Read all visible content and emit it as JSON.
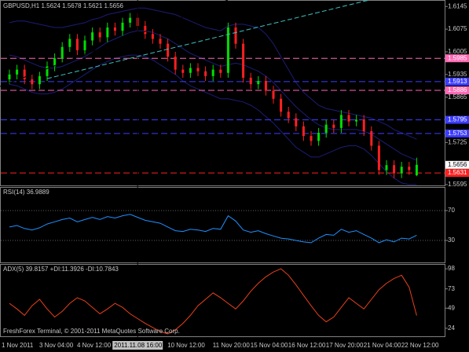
{
  "footer": "FreshForex Terminal, © 2001-2011 MetaQuotes Software Corp.",
  "chart_data": [
    {
      "type": "candlestick",
      "title": "GBPUSD,H1  1.5624 1.5678 1.5621 1.5656",
      "categories": [
        "1 Nov 2011",
        null,
        null,
        null,
        null,
        "3 Nov 04:00",
        null,
        null,
        null,
        null,
        "4 Nov 12:00",
        null,
        null,
        null,
        null,
        null,
        null,
        "2011.11.08 16:00",
        null,
        null,
        null,
        null,
        "10 Nov 12:00",
        null,
        null,
        null,
        null,
        null,
        "11 Nov 20:00",
        null,
        null,
        null,
        null,
        "15 Nov 04:00",
        null,
        null,
        null,
        null,
        "16 Nov 12:00",
        null,
        null,
        null,
        null,
        "17 Nov 20:00",
        null,
        null,
        null,
        null,
        "21 Nov 04:00",
        null,
        null,
        null,
        null,
        "22 Nov 12:00",
        null
      ],
      "open": [
        1.592,
        1.5935,
        1.595,
        1.592,
        1.5905,
        1.593,
        1.596,
        1.5985,
        1.602,
        1.6045,
        1.601,
        1.604,
        1.6065,
        1.605,
        1.608,
        1.607,
        1.6095,
        1.611,
        1.6085,
        1.606,
        1.6045,
        1.603,
        1.599,
        1.595,
        1.594,
        1.5955,
        1.5945,
        1.593,
        1.595,
        1.594,
        1.608,
        1.603,
        1.5925,
        1.5905,
        1.5915,
        1.5885,
        1.586,
        1.582,
        1.58,
        1.5775,
        1.5745,
        1.573,
        1.5755,
        1.578,
        1.577,
        1.581,
        1.579,
        1.5795,
        1.576,
        1.5715,
        1.564,
        1.5655,
        1.563,
        1.565,
        1.5624
      ],
      "high": [
        1.595,
        1.5965,
        1.5965,
        1.5935,
        1.5945,
        1.5975,
        1.6,
        1.6035,
        1.606,
        1.606,
        1.6055,
        1.608,
        1.608,
        1.6095,
        1.6095,
        1.611,
        1.6125,
        1.6125,
        1.61,
        1.6075,
        1.606,
        1.6045,
        1.6005,
        1.5965,
        1.597,
        1.597,
        1.596,
        1.5965,
        1.5965,
        1.6095,
        1.6095,
        1.6045,
        1.594,
        1.593,
        1.593,
        1.59,
        1.5875,
        1.5835,
        1.5815,
        1.579,
        1.576,
        1.577,
        1.5795,
        1.5795,
        1.5825,
        1.5825,
        1.581,
        1.581,
        1.5775,
        1.573,
        1.567,
        1.567,
        1.5665,
        1.5665,
        1.5678
      ],
      "low": [
        1.5905,
        1.592,
        1.5905,
        1.589,
        1.589,
        1.5915,
        1.5945,
        1.597,
        1.6005,
        1.5995,
        1.5995,
        1.6025,
        1.6035,
        1.6035,
        1.6055,
        1.6055,
        1.608,
        1.607,
        1.6045,
        1.603,
        1.6015,
        1.5975,
        1.5935,
        1.5925,
        1.5925,
        1.593,
        1.5915,
        1.5915,
        1.5925,
        1.5925,
        1.6015,
        1.591,
        1.589,
        1.589,
        1.587,
        1.5845,
        1.5805,
        1.5785,
        1.576,
        1.573,
        1.5715,
        1.5715,
        1.574,
        1.5755,
        1.5755,
        1.5775,
        1.5775,
        1.5745,
        1.57,
        1.5625,
        1.5625,
        1.5615,
        1.5615,
        1.5625,
        1.5621
      ],
      "close": [
        1.5935,
        1.595,
        1.592,
        1.5905,
        1.593,
        1.596,
        1.5985,
        1.602,
        1.6045,
        1.601,
        1.604,
        1.6065,
        1.605,
        1.608,
        1.607,
        1.6095,
        1.611,
        1.6085,
        1.606,
        1.6045,
        1.603,
        1.599,
        1.595,
        1.594,
        1.5955,
        1.5945,
        1.593,
        1.595,
        1.594,
        1.608,
        1.603,
        1.5925,
        1.5905,
        1.5915,
        1.5885,
        1.586,
        1.582,
        1.58,
        1.5775,
        1.5745,
        1.573,
        1.5755,
        1.578,
        1.577,
        1.581,
        1.579,
        1.5795,
        1.576,
        1.5715,
        1.564,
        1.5655,
        1.563,
        1.565,
        1.564,
        1.5656
      ],
      "up_color": "#00e000",
      "down_color": "#ff2020",
      "overlays": [
        {
          "color": "#1c1c78",
          "values": [
            1.6095,
            1.61,
            1.61,
            1.6095,
            1.609,
            1.6085,
            1.608,
            1.608,
            1.6085,
            1.609,
            1.6095,
            1.6105,
            1.611,
            1.612,
            1.6125,
            1.613,
            1.6135,
            1.614,
            1.614,
            1.6135,
            1.613,
            1.6125,
            1.612,
            1.611,
            1.61,
            1.609,
            1.608,
            1.6075,
            1.607,
            1.6085,
            1.609,
            1.609,
            1.6085,
            1.608,
            1.606,
            1.603,
            1.599,
            1.595,
            1.591,
            1.588,
            1.586,
            1.584,
            1.583,
            1.5825,
            1.582,
            1.5815,
            1.581,
            1.5805,
            1.58,
            1.579,
            1.578,
            1.5765,
            1.5755,
            1.5745,
            1.5735
          ]
        },
        {
          "color": "#1c1c78",
          "values": [
            1.5995,
            1.599,
            1.598,
            1.597,
            1.596,
            1.5955,
            1.5955,
            1.596,
            1.597,
            1.598,
            1.599,
            1.6005,
            1.602,
            1.6035,
            1.6045,
            1.6055,
            1.6065,
            1.607,
            1.607,
            1.6065,
            1.6055,
            1.6045,
            1.603,
            1.6015,
            1.6,
            1.599,
            1.598,
            1.597,
            1.596,
            1.5965,
            1.597,
            1.5965,
            1.5955,
            1.5945,
            1.593,
            1.591,
            1.5885,
            1.586,
            1.5835,
            1.5815,
            1.5795,
            1.578,
            1.577,
            1.5765,
            1.5765,
            1.5765,
            1.5765,
            1.576,
            1.575,
            1.5735,
            1.572,
            1.5705,
            1.569,
            1.568,
            1.567
          ]
        },
        {
          "color": "#1c1c78",
          "values": [
            1.5905,
            1.59,
            1.589,
            1.588,
            1.5875,
            1.5875,
            1.588,
            1.589,
            1.5905,
            1.592,
            1.5935,
            1.595,
            1.5965,
            1.5975,
            1.5985,
            1.599,
            1.5995,
            1.5995,
            1.599,
            1.598,
            1.5965,
            1.595,
            1.5935,
            1.5915,
            1.59,
            1.589,
            1.588,
            1.587,
            1.586,
            1.586,
            1.5855,
            1.585,
            1.584,
            1.5825,
            1.5805,
            1.5785,
            1.576,
            1.5735,
            1.571,
            1.5695,
            1.568,
            1.568,
            1.569,
            1.57,
            1.571,
            1.5715,
            1.5715,
            1.5705,
            1.5685,
            1.566,
            1.5635,
            1.5615,
            1.56,
            1.5595,
            1.5595
          ]
        }
      ],
      "levels": [
        {
          "value": 1.5985,
          "color": "#ff69b4"
        },
        {
          "value": 1.5913,
          "color": "#3c3cff"
        },
        {
          "value": 1.5886,
          "color": "#ff69b4"
        },
        {
          "value": 1.5795,
          "color": "#3c3cff"
        },
        {
          "value": 1.5753,
          "color": "#3c3cff"
        },
        {
          "value": 1.5631,
          "color": "#ff2020"
        }
      ],
      "last_price": 1.5656,
      "ylim": [
        1.559,
        1.6165
      ],
      "yticks": [
        1.6145,
        1.6075,
        1.6005,
        1.5935,
        1.5865,
        1.5725,
        1.5595
      ]
    },
    {
      "type": "line",
      "title": "RSI(14) 36.9889",
      "series": [
        {
          "color": "#1e90ff",
          "values": [
            48,
            50,
            46,
            44,
            47,
            52,
            55,
            58,
            60,
            55,
            58,
            61,
            58,
            62,
            60,
            63,
            65,
            61,
            57,
            55,
            53,
            48,
            43,
            42,
            45,
            44,
            42,
            46,
            45,
            63,
            56,
            44,
            41,
            43,
            39,
            36,
            33,
            32,
            30,
            28,
            27,
            33,
            38,
            37,
            45,
            41,
            43,
            38,
            33,
            27,
            31,
            28,
            33,
            32,
            36.9889
          ]
        }
      ],
      "ylim": [
        0,
        100
      ],
      "yticks": [
        70,
        30
      ],
      "grid": true
    },
    {
      "type": "line",
      "title": "ADX(5) 39.8157 +DI:11.3926 -DI:10.7843",
      "series": [
        {
          "color": "#e8401c",
          "values": [
            55,
            48,
            40,
            52,
            60,
            48,
            38,
            45,
            55,
            62,
            58,
            50,
            42,
            48,
            55,
            50,
            42,
            36,
            30,
            25,
            20,
            17,
            22,
            30,
            40,
            52,
            60,
            68,
            62,
            55,
            48,
            58,
            70,
            80,
            88,
            94,
            98,
            90,
            78,
            65,
            52,
            40,
            32,
            38,
            50,
            62,
            55,
            48,
            60,
            72,
            80,
            86,
            90,
            75,
            39.8157
          ]
        }
      ],
      "ylim": [
        14,
        103
      ],
      "yticks": [
        98,
        73,
        49,
        24
      ],
      "grid": false
    }
  ]
}
